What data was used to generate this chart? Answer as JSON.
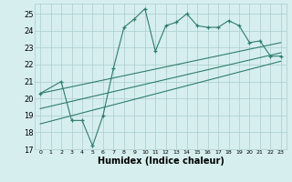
{
  "xlabel": "Humidex (Indice chaleur)",
  "bg_color": "#d6eeee",
  "grid_color": "#aacccc",
  "line_color": "#2e7d6e",
  "xlim": [
    -0.5,
    23.5
  ],
  "ylim": [
    17,
    25.6
  ],
  "yticks": [
    17,
    18,
    19,
    20,
    21,
    22,
    23,
    24,
    25
  ],
  "xticks": [
    0,
    1,
    2,
    3,
    4,
    5,
    6,
    7,
    8,
    9,
    10,
    11,
    12,
    13,
    14,
    15,
    16,
    17,
    18,
    19,
    20,
    21,
    22,
    23
  ],
  "series1_x": [
    0,
    2,
    3,
    4,
    5,
    6,
    7,
    8,
    9,
    10,
    11,
    12,
    13,
    14,
    15,
    16,
    17,
    18,
    19,
    20,
    21,
    22,
    23
  ],
  "series1_y": [
    20.3,
    21.0,
    18.7,
    18.7,
    17.2,
    19.0,
    21.8,
    24.2,
    24.7,
    25.3,
    22.8,
    24.3,
    24.5,
    25.0,
    24.3,
    24.2,
    24.2,
    24.6,
    24.3,
    23.3,
    23.4,
    22.5,
    22.5
  ],
  "line1_x": [
    0,
    23
  ],
  "line1_y": [
    20.3,
    23.3
  ],
  "line2_x": [
    0,
    23
  ],
  "line2_y": [
    19.4,
    22.7
  ],
  "line3_x": [
    0,
    23
  ],
  "line3_y": [
    18.5,
    22.2
  ]
}
